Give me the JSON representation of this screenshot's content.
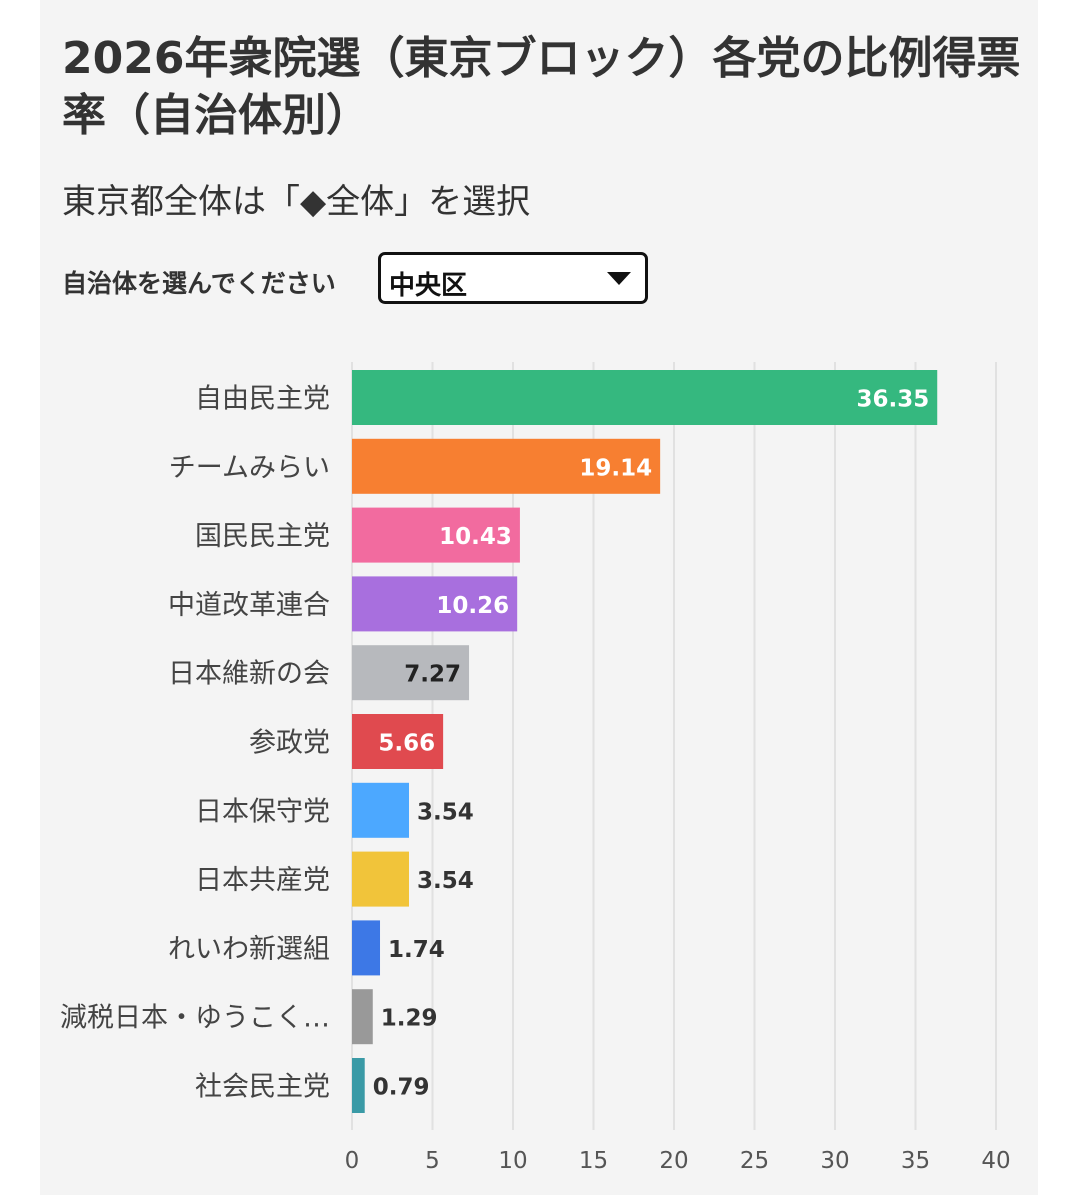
{
  "title": "2026年衆院選（東京ブロック）各党の比例得票率（自治体別）",
  "subtitle": "東京都全体は「◆全体」を選択",
  "selector": {
    "label": "自治体を選んでください",
    "selected": "中央区",
    "caret_icon": "chevron-down-icon"
  },
  "chart_data": {
    "type": "bar",
    "orientation": "horizontal",
    "categories": [
      "自由民主党",
      "チームみらい",
      "国民民主党",
      "中道改革連合",
      "日本維新の会",
      "参政党",
      "日本保守党",
      "日本共産党",
      "れいわ新選組",
      "減税日本・ゆうこく…",
      "社会民主党"
    ],
    "values": [
      36.35,
      19.14,
      10.43,
      10.26,
      7.27,
      5.66,
      3.54,
      3.54,
      1.74,
      1.29,
      0.79
    ],
    "value_labels": [
      "36.35",
      "19.14",
      "10.43",
      "10.26",
      "7.27",
      "5.66",
      "3.54",
      "3.54",
      "1.74",
      "1.29",
      "0.79"
    ],
    "colors": [
      "#35b87f",
      "#f77f31",
      "#f26b9f",
      "#a86fde",
      "#b7b9bd",
      "#e04a4f",
      "#4ca8ff",
      "#f1c43a",
      "#3d78e6",
      "#999999",
      "#3a9aa6"
    ],
    "label_inside": [
      true,
      true,
      true,
      true,
      true,
      true,
      false,
      false,
      false,
      false,
      false
    ],
    "label_text_colors": [
      "#ffffff",
      "#ffffff",
      "#ffffff",
      "#ffffff",
      "#222222",
      "#ffffff",
      "#333333",
      "#333333",
      "#333333",
      "#333333",
      "#333333"
    ],
    "xlim": [
      0,
      40
    ],
    "xticks": [
      0,
      5,
      10,
      15,
      20,
      25,
      30,
      35,
      40
    ],
    "xlabel": "",
    "ylabel": "",
    "grid": true
  }
}
